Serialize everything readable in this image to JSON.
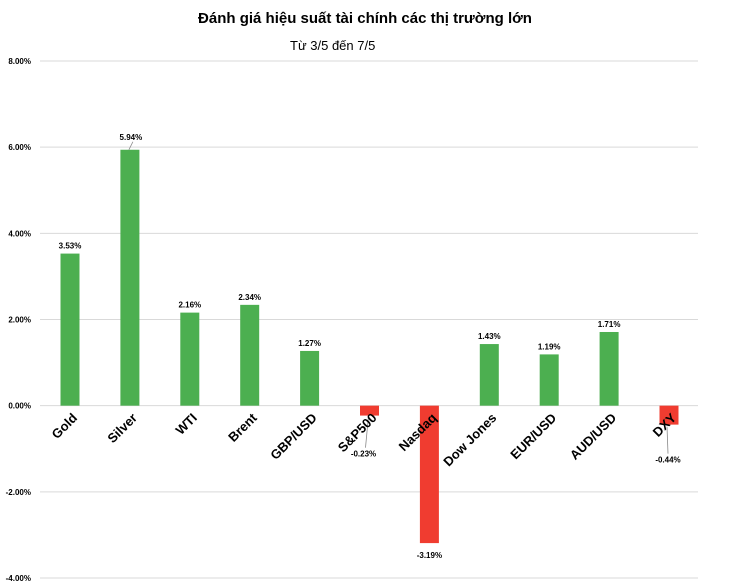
{
  "chart_data": {
    "type": "bar",
    "title": "Đánh giá hiệu suất tài chính các thị trường lớn",
    "subtitle": "Từ 3/5 đến 7/5",
    "categories": [
      "Gold",
      "Silver",
      "WTI",
      "Brent",
      "GBP/USD",
      "S&P500",
      "Nasdaq",
      "Dow Jones",
      "EUR/USD",
      "AUD/USD",
      "DXY"
    ],
    "values": [
      3.53,
      5.94,
      2.16,
      2.34,
      1.27,
      -0.23,
      -3.19,
      1.43,
      1.19,
      1.71,
      -0.44
    ],
    "value_labels": [
      "3.53%",
      "5.94%",
      "2.16%",
      "2.34%",
      "1.27%",
      "-0.23%",
      "-3.19%",
      "1.43%",
      "1.19%",
      "1.71%",
      "-0.44%"
    ],
    "ylim": [
      -4,
      8
    ],
    "yticks": [
      "8.00%",
      "6.00%",
      "4.00%",
      "2.00%",
      "0.00%",
      "-2.00%",
      "-4.00%"
    ],
    "grid": true,
    "colors": {
      "positive": "#4CAF50",
      "negative": "#F03C30",
      "grid": "#D9D9D9"
    }
  }
}
